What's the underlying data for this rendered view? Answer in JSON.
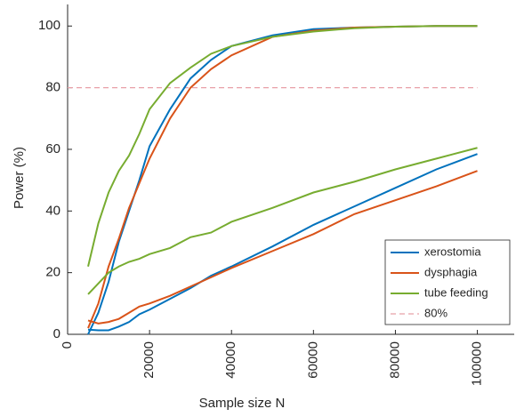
{
  "chart_data": {
    "type": "line",
    "x_label": "Sample size N",
    "y_label": "Power (%)",
    "x": [
      5000,
      7500,
      10000,
      12500,
      15000,
      17500,
      20000,
      25000,
      30000,
      35000,
      40000,
      50000,
      60000,
      70000,
      80000,
      90000,
      100000
    ],
    "series": [
      {
        "name": "xerostomia",
        "color": "#0072bd",
        "curves": [
          [
            0,
            7,
            17,
            30,
            40,
            50,
            61,
            73,
            83,
            89,
            93.5,
            97,
            99,
            99.5,
            99.8,
            100,
            100
          ],
          [
            1.5,
            1.3,
            1.3,
            2.5,
            4,
            6.5,
            8,
            11.5,
            15,
            19,
            22,
            28.5,
            35.5,
            41.5,
            47.5,
            53.5,
            58.5
          ]
        ]
      },
      {
        "name": "dysphagia",
        "color": "#d95319",
        "curves": [
          [
            2,
            10,
            22,
            31,
            41,
            49,
            57,
            70,
            80,
            86,
            90.5,
            96.5,
            98.5,
            99.5,
            99.8,
            100,
            100
          ],
          [
            4.5,
            3.5,
            4,
            5,
            7,
            9,
            10,
            12.5,
            15.5,
            18.5,
            21.5,
            27,
            32.5,
            39,
            43.5,
            48,
            53
          ]
        ]
      },
      {
        "name": "tube feeding",
        "color": "#77ac30",
        "curves": [
          [
            22,
            36,
            46,
            53,
            58,
            65,
            73,
            81.5,
            86.5,
            91,
            93.5,
            96.5,
            98.2,
            99.3,
            99.8,
            100,
            100
          ],
          [
            13,
            16.5,
            20,
            22,
            23.5,
            24.5,
            26,
            28,
            31.5,
            33,
            36.5,
            41,
            46,
            49.5,
            53.5,
            57,
            60.5
          ]
        ]
      }
    ],
    "reference": {
      "name": "80%",
      "value": 80,
      "from": 0,
      "to": 100000,
      "color": "#e8a0a8"
    },
    "xlim": [
      0,
      109000
    ],
    "xticks": [
      0,
      20000,
      40000,
      60000,
      80000,
      100000
    ],
    "ylim": [
      0,
      107
    ],
    "yticks": [
      0,
      20,
      40,
      60,
      80,
      100
    ]
  }
}
